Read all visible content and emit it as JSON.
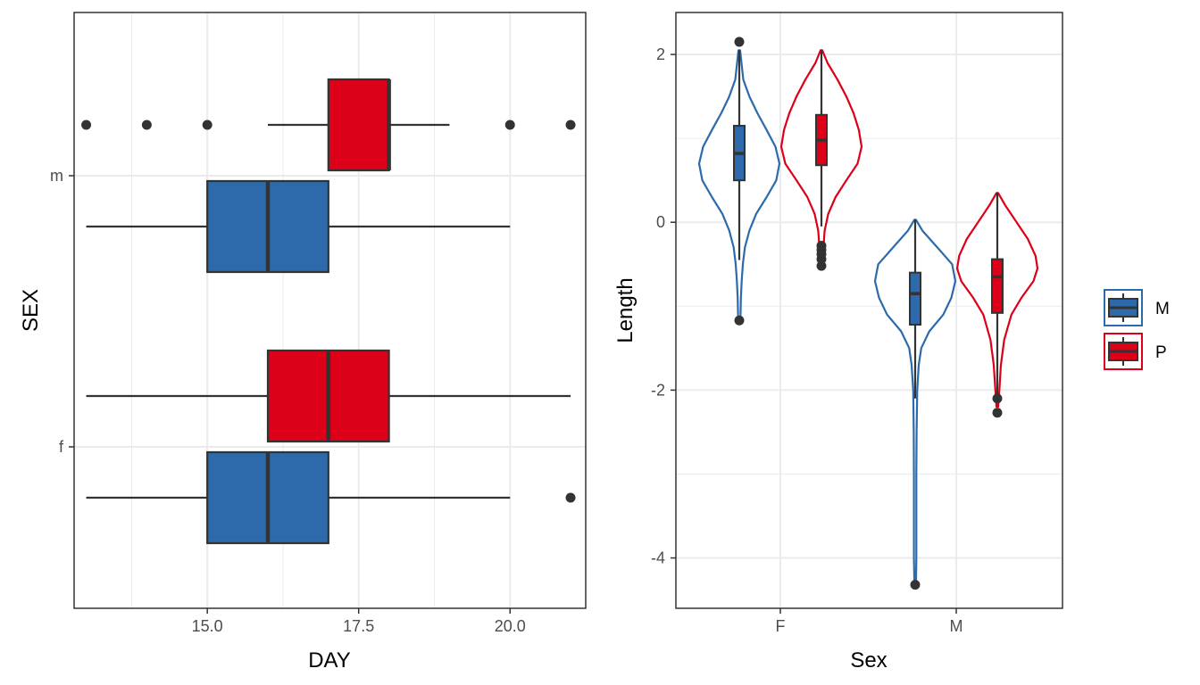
{
  "colors": {
    "M": "#2c6aab",
    "P": "#dc0018",
    "grid": "#ebebeb",
    "frame": "#333333",
    "text": "#000000",
    "tick_text": "#4d4d4d"
  },
  "legend": {
    "items": [
      {
        "key": "M",
        "label": "M"
      },
      {
        "key": "P",
        "label": "P"
      }
    ],
    "placement": "right"
  },
  "chart_data": [
    {
      "type": "box",
      "orientation": "horizontal",
      "xlabel": "DAY",
      "ylabel": "SEX",
      "xlim": [
        12.8,
        21.25
      ],
      "xticks": [
        15.0,
        17.5,
        20.0
      ],
      "xtick_labels": [
        "15.0",
        "17.5",
        "20.0"
      ],
      "categories": [
        "f",
        "m"
      ],
      "grid": true,
      "series": [
        {
          "key": "M",
          "boxes": [
            {
              "category": "f",
              "whisker_low": 13,
              "q1": 15,
              "median": 16,
              "q3": 17,
              "whisker_high": 20,
              "outliers": [
                21
              ]
            },
            {
              "category": "m",
              "whisker_low": 13,
              "q1": 15,
              "median": 16,
              "q3": 17,
              "whisker_high": 20,
              "outliers": []
            }
          ]
        },
        {
          "key": "P",
          "boxes": [
            {
              "category": "f",
              "whisker_low": 13,
              "q1": 16,
              "median": 17,
              "q3": 18,
              "whisker_high": 21,
              "outliers": []
            },
            {
              "category": "m",
              "whisker_low": 16,
              "q1": 17,
              "median": 18,
              "q3": 18,
              "whisker_high": 19,
              "outliers": [
                13,
                14,
                15,
                20,
                21
              ]
            }
          ]
        }
      ]
    },
    {
      "type": "violin",
      "xlabel": "Sex",
      "ylabel": "Length",
      "ylim": [
        -4.6,
        2.5
      ],
      "yticks": [
        -4,
        -2,
        0,
        2
      ],
      "ytick_labels": [
        "-4",
        "-2",
        "0",
        "2"
      ],
      "categories": [
        "F",
        "M"
      ],
      "grid": true,
      "series": [
        {
          "key": "M",
          "groups": [
            {
              "category": "F",
              "violin": [
                [
                  2.05,
                  0.02
                ],
                [
                  1.7,
                  0.1
                ],
                [
                  1.5,
                  0.25
                ],
                [
                  1.3,
                  0.45
                ],
                [
                  1.1,
                  0.68
                ],
                [
                  0.9,
                  0.9
                ],
                [
                  0.7,
                  1.0
                ],
                [
                  0.5,
                  0.92
                ],
                [
                  0.3,
                  0.68
                ],
                [
                  0.1,
                  0.42
                ],
                [
                  -0.1,
                  0.25
                ],
                [
                  -0.3,
                  0.14
                ],
                [
                  -0.5,
                  0.09
                ],
                [
                  -0.7,
                  0.06
                ],
                [
                  -0.9,
                  0.04
                ],
                [
                  -1.1,
                  0.03
                ],
                [
                  -1.18,
                  0.02
                ]
              ],
              "box": {
                "whisker_low": -0.45,
                "q1": 0.5,
                "median": 0.82,
                "q3": 1.15,
                "whisker_high": 2.05,
                "outliers": [
                  2.15,
                  -1.17
                ]
              }
            },
            {
              "category": "M",
              "violin": [
                [
                  0.03,
                  0.02
                ],
                [
                  -0.1,
                  0.18
                ],
                [
                  -0.3,
                  0.55
                ],
                [
                  -0.5,
                  0.92
                ],
                [
                  -0.7,
                  1.0
                ],
                [
                  -0.9,
                  0.9
                ],
                [
                  -1.1,
                  0.7
                ],
                [
                  -1.3,
                  0.35
                ],
                [
                  -1.5,
                  0.15
                ],
                [
                  -1.7,
                  0.09
                ],
                [
                  -2.0,
                  0.05
                ],
                [
                  -2.5,
                  0.035
                ],
                [
                  -3.0,
                  0.03
                ],
                [
                  -3.5,
                  0.03
                ],
                [
                  -4.0,
                  0.03
                ],
                [
                  -4.3,
                  0.02
                ]
              ],
              "box": {
                "whisker_low": -2.1,
                "q1": -1.22,
                "median": -0.85,
                "q3": -0.6,
                "whisker_high": 0.03,
                "outliers": [
                  -4.32
                ]
              }
            }
          ]
        },
        {
          "key": "P",
          "groups": [
            {
              "category": "F",
              "violin": [
                [
                  2.05,
                  0.02
                ],
                [
                  1.9,
                  0.15
                ],
                [
                  1.7,
                  0.4
                ],
                [
                  1.5,
                  0.62
                ],
                [
                  1.3,
                  0.8
                ],
                [
                  1.1,
                  0.93
                ],
                [
                  0.9,
                  1.0
                ],
                [
                  0.7,
                  0.9
                ],
                [
                  0.5,
                  0.62
                ],
                [
                  0.3,
                  0.35
                ],
                [
                  0.1,
                  0.17
                ],
                [
                  -0.1,
                  0.08
                ],
                [
                  -0.3,
                  0.05
                ],
                [
                  -0.5,
                  0.02
                ]
              ],
              "box": {
                "whisker_low": -0.05,
                "q1": 0.68,
                "median": 0.98,
                "q3": 1.28,
                "whisker_high": 2.05,
                "outliers": [
                  -0.28,
                  -0.33,
                  -0.38,
                  -0.44,
                  -0.52
                ]
              }
            },
            {
              "category": "M",
              "violin": [
                [
                  0.35,
                  0.02
                ],
                [
                  0.2,
                  0.2
                ],
                [
                  0.0,
                  0.48
                ],
                [
                  -0.2,
                  0.76
                ],
                [
                  -0.4,
                  0.95
                ],
                [
                  -0.55,
                  1.0
                ],
                [
                  -0.7,
                  0.9
                ],
                [
                  -0.9,
                  0.6
                ],
                [
                  -1.1,
                  0.35
                ],
                [
                  -1.4,
                  0.17
                ],
                [
                  -1.7,
                  0.09
                ],
                [
                  -2.0,
                  0.05
                ],
                [
                  -2.2,
                  0.02
                ]
              ],
              "box": {
                "whisker_low": -2.1,
                "q1": -1.08,
                "median": -0.65,
                "q3": -0.44,
                "whisker_high": 0.35,
                "outliers": [
                  -2.1,
                  -2.27
                ]
              }
            }
          ]
        }
      ]
    }
  ]
}
